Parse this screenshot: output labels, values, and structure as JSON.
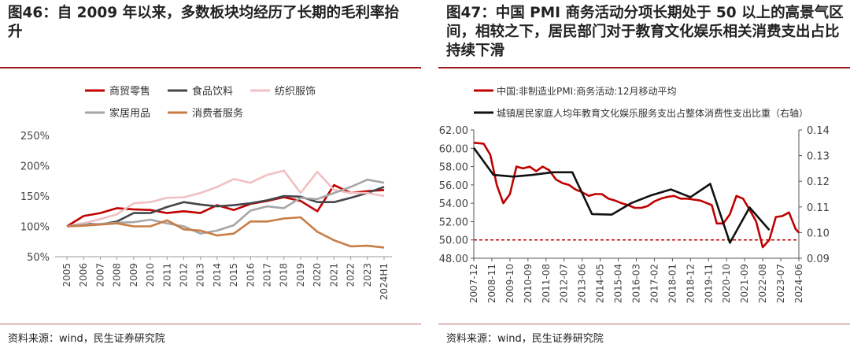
{
  "left": {
    "title": "图46：自 2009 年以来，多数板块均经历了长期的毛利率抬升",
    "source": "资料来源：wind，民生证券研究院"
  },
  "right": {
    "title": "图47：中国 PMI 商务活动分项长期处于 50 以上的高景气区间，相较之下，居民部门对于教育文化娱乐相关消费支出占比持续下滑",
    "source": "资料来源：wind，民生证券研究院"
  },
  "chart_data": [
    {
      "type": "line",
      "categories": [
        "2005",
        "2006",
        "2007",
        "2008",
        "2009",
        "2010",
        "2011",
        "2012",
        "2013",
        "2014",
        "2015",
        "2016",
        "2017",
        "2018",
        "2019",
        "2020",
        "2021",
        "2022",
        "2023",
        "2024H1"
      ],
      "ylim": [
        0.5,
        2.5
      ],
      "yticks": [
        0.5,
        1.0,
        1.5,
        2.0,
        2.5
      ],
      "ytick_labels": [
        "50%",
        "100%",
        "150%",
        "200%",
        "250%"
      ],
      "legend_position": "top",
      "grid": false,
      "series": [
        {
          "name": "商贸零售",
          "color": "#c00000",
          "values": [
            1.0,
            1.17,
            1.22,
            1.3,
            1.28,
            1.27,
            1.22,
            1.25,
            1.22,
            1.35,
            1.27,
            1.37,
            1.42,
            1.48,
            1.42,
            1.25,
            1.68,
            1.55,
            1.58,
            1.6
          ]
        },
        {
          "name": "食品饮料",
          "color": "#44464a",
          "values": [
            1.0,
            1.05,
            1.03,
            1.08,
            1.22,
            1.22,
            1.32,
            1.4,
            1.36,
            1.33,
            1.35,
            1.38,
            1.43,
            1.5,
            1.49,
            1.4,
            1.4,
            1.47,
            1.55,
            1.65
          ]
        },
        {
          "name": "纺织服饰",
          "color": "#f0c0c2",
          "values": [
            1.0,
            1.05,
            1.12,
            1.2,
            1.38,
            1.4,
            1.47,
            1.48,
            1.55,
            1.65,
            1.78,
            1.72,
            1.85,
            1.92,
            1.55,
            1.9,
            1.6,
            1.55,
            1.55,
            1.5
          ]
        },
        {
          "name": "家居用品",
          "color": "#a6a6a6",
          "values": [
            1.0,
            1.03,
            1.04,
            1.06,
            1.07,
            1.11,
            1.05,
            1.0,
            0.88,
            0.93,
            1.02,
            1.26,
            1.33,
            1.3,
            1.47,
            1.45,
            1.55,
            1.65,
            1.77,
            1.72
          ]
        },
        {
          "name": "消费者服务",
          "color": "#c87d45",
          "values": [
            1.0,
            1.01,
            1.03,
            1.05,
            1.0,
            1.0,
            1.1,
            0.95,
            0.93,
            0.85,
            0.88,
            1.08,
            1.08,
            1.13,
            1.15,
            0.91,
            0.77,
            0.67,
            0.68,
            0.65
          ]
        }
      ]
    },
    {
      "type": "line",
      "x_ticks": [
        "2007-12",
        "2008-11",
        "2009-10",
        "2010-09",
        "2011-08",
        "2012-07",
        "2013-06",
        "2014-05",
        "2015-04",
        "2016-03",
        "2017-02",
        "2018-01",
        "2018-12",
        "2019-11",
        "2020-10",
        "2021-09",
        "2022-08",
        "2023-07",
        "2024-06"
      ],
      "x_range": [
        "2007-12",
        "2024-06"
      ],
      "ylim_left": [
        48,
        62
      ],
      "yticks_left": [
        "48.00",
        "50.00",
        "52.00",
        "54.00",
        "56.00",
        "58.00",
        "60.00",
        "62.00"
      ],
      "ylim_right": [
        0.09,
        0.14
      ],
      "yticks_right": [
        "0.09",
        "0.10",
        "0.11",
        "0.12",
        "0.13",
        "0.14"
      ],
      "reference_line": {
        "value": 50,
        "axis": "left",
        "color": "#c00000",
        "style": "dashed"
      },
      "legend_position": "top-left",
      "series": [
        {
          "name": "中国:非制造业PMI:商务活动:12月移动平均",
          "color": "#c00000",
          "axis": "left",
          "x": [
            "2007-12",
            "2008-06",
            "2008-10",
            "2009-02",
            "2009-06",
            "2009-10",
            "2010-02",
            "2010-06",
            "2010-10",
            "2011-02",
            "2011-06",
            "2011-10",
            "2012-02",
            "2012-06",
            "2012-10",
            "2013-02",
            "2013-06",
            "2013-10",
            "2014-02",
            "2014-06",
            "2014-10",
            "2015-02",
            "2015-06",
            "2015-10",
            "2016-02",
            "2016-06",
            "2016-10",
            "2017-02",
            "2017-06",
            "2017-10",
            "2018-02",
            "2018-06",
            "2018-10",
            "2019-02",
            "2019-06",
            "2019-10",
            "2020-01",
            "2020-04",
            "2020-08",
            "2020-12",
            "2021-04",
            "2021-08",
            "2021-12",
            "2022-04",
            "2022-08",
            "2022-12",
            "2023-04",
            "2023-08",
            "2023-12",
            "2024-04",
            "2024-06"
          ],
          "y": [
            60.6,
            60.5,
            59.3,
            56.0,
            54.0,
            55.0,
            58.0,
            57.8,
            58.0,
            57.5,
            58.0,
            57.6,
            56.6,
            56.2,
            56.0,
            55.5,
            55.2,
            54.8,
            55.0,
            55.0,
            54.5,
            54.3,
            54.0,
            53.8,
            53.5,
            53.5,
            53.7,
            54.2,
            54.5,
            54.7,
            54.8,
            54.5,
            54.5,
            54.4,
            54.3,
            54.0,
            53.8,
            51.8,
            51.8,
            52.8,
            54.8,
            54.5,
            53.3,
            52.0,
            49.2,
            50.0,
            52.5,
            52.6,
            53.0,
            51.2,
            50.8
          ]
        },
        {
          "name": "城镇居民家庭人均年教育文化娱乐服务支出占整体消费性支出比重（右轴）",
          "color": "#111111",
          "axis": "right",
          "x": [
            "2007-12",
            "2008-12",
            "2009-12",
            "2010-12",
            "2011-12",
            "2012-12",
            "2013-12",
            "2014-12",
            "2015-12",
            "2016-12",
            "2017-12",
            "2018-12",
            "2019-12",
            "2020-12",
            "2021-12",
            "2022-12"
          ],
          "y": [
            0.133,
            0.1225,
            0.1218,
            0.1225,
            0.1235,
            0.1235,
            0.1072,
            0.107,
            0.1115,
            0.1145,
            0.1168,
            0.1138,
            0.119,
            0.096,
            0.1098,
            0.101
          ]
        }
      ]
    }
  ]
}
